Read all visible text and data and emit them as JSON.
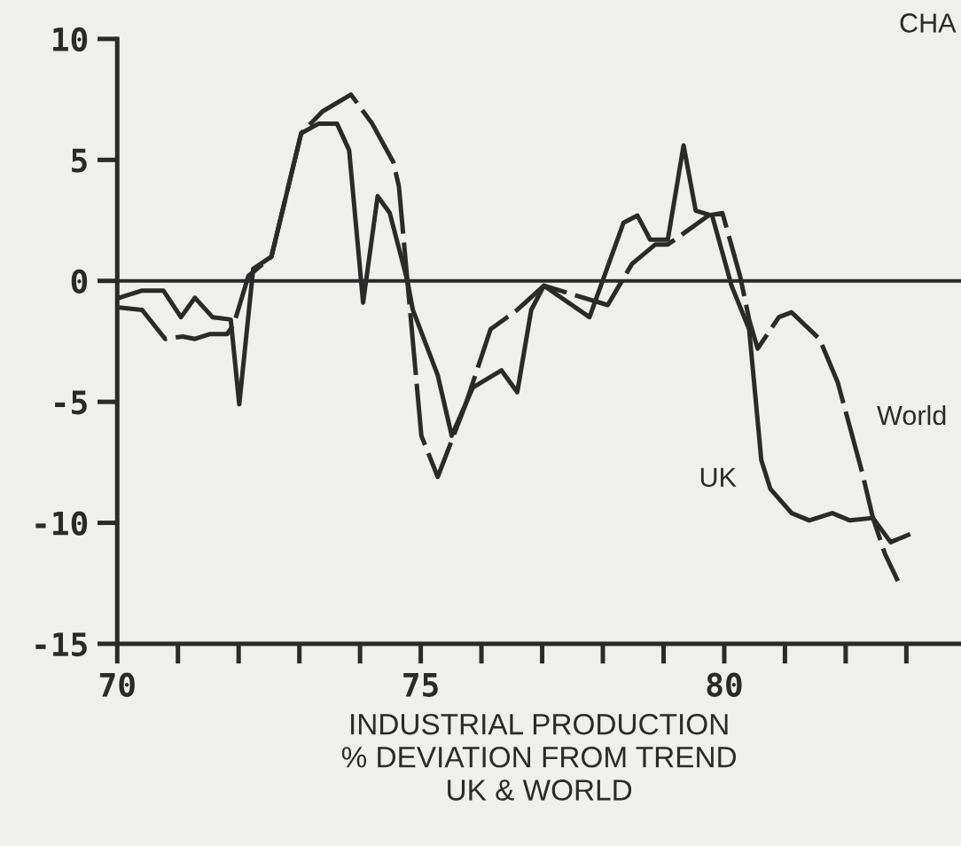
{
  "chart_data": {
    "type": "line",
    "xlabel": "INDUSTRIAL PRODUCTION\n% DEVIATION FROM TREND\nUK & WORLD",
    "annotations": [
      "CHA"
    ],
    "xlim": [
      70,
      83.9
    ],
    "xticks": [
      70,
      {
        "value": 71,
        "label": null
      },
      {
        "value": 72,
        "label": null
      },
      {
        "value": 73,
        "label": null
      },
      {
        "value": 74,
        "label": null
      },
      75,
      {
        "value": 76,
        "label": null
      },
      {
        "value": 77,
        "label": null
      },
      {
        "value": 78,
        "label": null
      },
      {
        "value": 79,
        "label": null
      },
      80,
      {
        "value": 81,
        "label": null
      },
      {
        "value": 82,
        "label": null
      },
      {
        "value": 83,
        "label": null
      }
    ],
    "ylim": [
      -15,
      10
    ],
    "yticks": [
      -15,
      -10,
      -5,
      0,
      5,
      10
    ],
    "ref_lines": [
      {
        "axis": "y",
        "value": 0,
        "color": "#2a2a2a"
      }
    ],
    "grid": false,
    "legend": false,
    "marker": "none",
    "series": [
      {
        "name": "UK",
        "color": "#2a2a2a",
        "line_style": "solid",
        "x": [
          70.03,
          70.41,
          70.76,
          71.05,
          71.28,
          71.57,
          71.87,
          72.01,
          72.24,
          72.54,
          73.03,
          73.32,
          73.62,
          73.82,
          74.05,
          74.29,
          74.49,
          74.78,
          74.87,
          75.28,
          75.51,
          75.86,
          76.33,
          76.59,
          76.82,
          77.03,
          77.78,
          78.34,
          78.57,
          78.78,
          79.07,
          79.33,
          79.53,
          79.8,
          80.12,
          80.41,
          80.61,
          80.76,
          81.11,
          81.4,
          81.78,
          82.07,
          82.45,
          82.74,
          83.03
        ],
        "values": [
          -0.7,
          -0.4,
          -0.4,
          -1.5,
          -0.7,
          -1.5,
          -1.6,
          -5.1,
          0.5,
          1.0,
          6.1,
          6.5,
          6.5,
          5.4,
          -0.9,
          3.5,
          2.8,
          0,
          -1.2,
          -3.9,
          -6.4,
          -4.4,
          -3.7,
          -4.6,
          -1.2,
          -0.2,
          -1.5,
          2.4,
          2.7,
          1.7,
          1.7,
          5.6,
          2.9,
          2.7,
          -0.2,
          -2.0,
          -7.4,
          -8.6,
          -9.6,
          -9.9,
          -9.6,
          -9.9,
          -9.8,
          -10.8,
          -10.5
        ]
      },
      {
        "name": "World",
        "color": "#2a2a2a",
        "line_style": "dashed",
        "x": [
          70.03,
          70.41,
          70.79,
          71.08,
          71.28,
          71.52,
          71.81,
          71.92,
          72.16,
          72.54,
          73.03,
          73.38,
          73.85,
          74.2,
          74.55,
          74.64,
          75.01,
          75.28,
          75.74,
          76.15,
          76.59,
          77.03,
          78.08,
          78.48,
          78.86,
          79.07,
          79.74,
          79.97,
          80.26,
          80.41,
          80.55,
          80.9,
          81.11,
          81.57,
          81.87,
          82.27,
          82.45,
          82.65,
          82.86
        ],
        "values": [
          -1.1,
          -1.2,
          -2.4,
          -2.3,
          -2.4,
          -2.2,
          -2.2,
          -1.8,
          0.2,
          1.0,
          6.1,
          7.0,
          7.7,
          6.5,
          4.9,
          3.9,
          -6.4,
          -8.1,
          -5.1,
          -2.0,
          -1.2,
          -0.2,
          -1.0,
          0.7,
          1.5,
          1.5,
          2.7,
          2.8,
          0.2,
          -1.6,
          -2.8,
          -1.5,
          -1.3,
          -2.4,
          -4.2,
          -7.9,
          -9.8,
          -11.3,
          -12.4
        ]
      }
    ]
  }
}
